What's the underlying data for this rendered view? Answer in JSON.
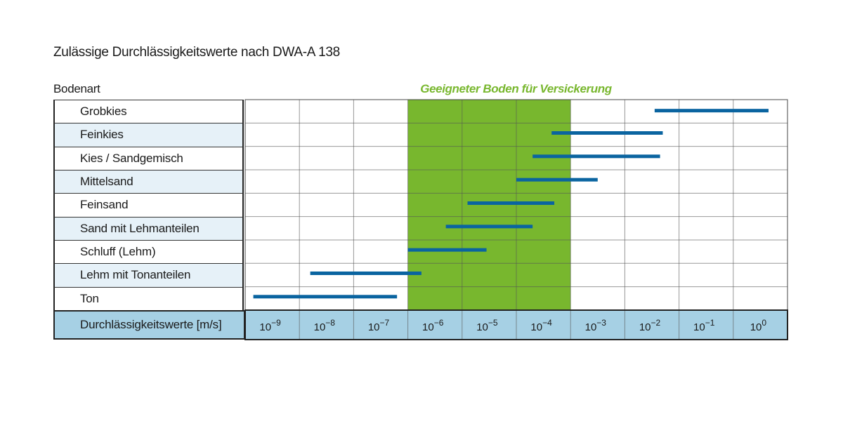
{
  "chart_data": {
    "type": "range-bar",
    "title": "Zulässige Durchlässigkeitswerte nach DWA-A 138",
    "ylabel": "Bodenart",
    "xlabel": "Durchlässigkeitswerte [m/s]",
    "x_scale": "log",
    "x_ticks_exponent": [
      -9,
      -8,
      -7,
      -6,
      -5,
      -4,
      -3,
      -2,
      -1,
      0
    ],
    "x_tick_base": "10",
    "xlim_exponent": [
      -9.5,
      0.5
    ],
    "highlight": {
      "label": "Geeigneter Boden für Versickerung",
      "range_exponent": [
        -6.5,
        -3.5
      ],
      "color": "#78b72e"
    },
    "bar_color": "#0a64a0",
    "categories": [
      "Grobkies",
      "Feinkies",
      "Kies / Sandgemisch",
      "Mittelsand",
      "Feinsand",
      "Sand mit Lehmanteilen",
      "Schluff (Lehm)",
      "Lehm mit Tonanteilen",
      "Ton"
    ],
    "ranges_log10": [
      [
        -1.95,
        0.15
      ],
      [
        -3.85,
        -1.8
      ],
      [
        -4.2,
        -1.85
      ],
      [
        -4.5,
        -3.0
      ],
      [
        -5.4,
        -3.8
      ],
      [
        -5.8,
        -4.2
      ],
      [
        -6.5,
        -5.05
      ],
      [
        -8.3,
        -6.25
      ],
      [
        -9.35,
        -6.7
      ]
    ],
    "grid": true
  }
}
